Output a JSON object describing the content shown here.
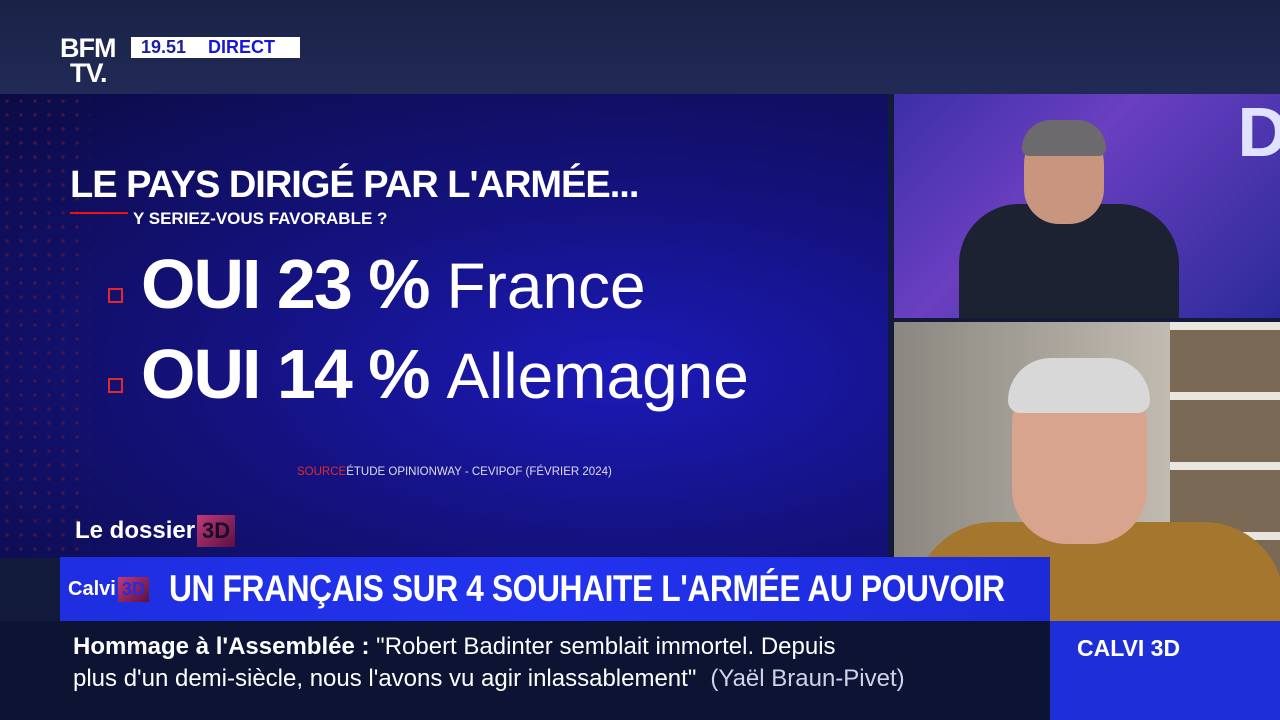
{
  "header": {
    "logo": "BFM TV.",
    "logo_line1": "BFM",
    "logo_line2": "TV.",
    "time": "19.51",
    "live_label": "DIRECT"
  },
  "graphic": {
    "title": "LE PAYS DIRIGÉ PAR L'ARMÉE...",
    "subtitle": "Y SERIEZ-VOUS FAVORABLE ?",
    "rows": [
      {
        "stat": "OUI 23 %",
        "country": "France"
      },
      {
        "stat": "OUI 14 %",
        "country": "Allemagne"
      }
    ],
    "source_label": "SOURCE",
    "source_text": "ÉTUDE OPINIONWAY - CEVIPOF (FÉVRIER 2024)",
    "segment": "Le dossier",
    "segment_tag": "3D"
  },
  "studio": {
    "backdrop_letter": "D"
  },
  "banner": {
    "show": "Calvi",
    "show_tag": "3D",
    "headline": "UN FRANÇAIS SUR 4 SOUHAITE L'ARMÉE AU POUVOIR"
  },
  "ticker": {
    "topic": "Hommage à l'Assemblée",
    "colon": " :",
    "quote_line1": " \"Robert Badinter semblait immortel. Depuis",
    "quote_line2": "plus d'un demi-siècle, nous l'avons vu agir inlassablement\"",
    "attribution": "(Yaël Braun-Pivet)"
  },
  "program_box": "CALVI 3D"
}
